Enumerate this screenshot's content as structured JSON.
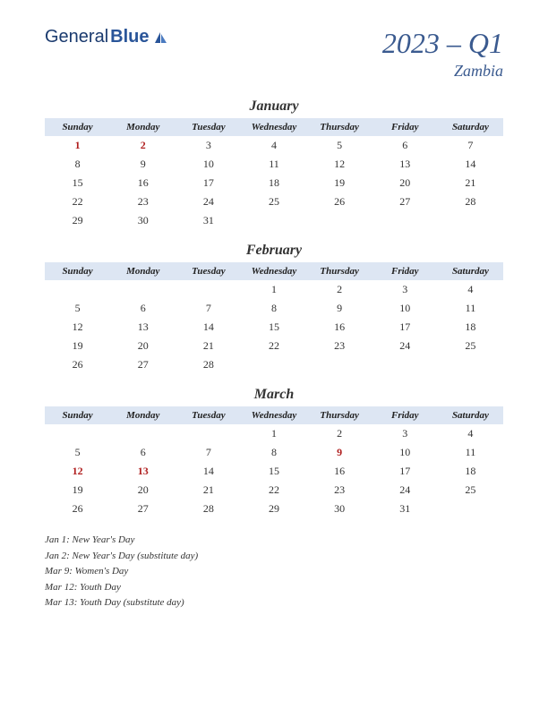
{
  "logo": {
    "text1": "General",
    "text2": "Blue"
  },
  "header": {
    "title": "2023 – Q1",
    "subtitle": "Zambia"
  },
  "dayNames": [
    "Sunday",
    "Monday",
    "Tuesday",
    "Wednesday",
    "Thursday",
    "Friday",
    "Saturday"
  ],
  "colors": {
    "headerBg": "#dde6f3",
    "holidayText": "#b02020",
    "titleColor": "#3a5a8f",
    "logoColor": "#2a5599",
    "bg": "#ffffff"
  },
  "months": [
    {
      "name": "January",
      "weeks": [
        [
          {
            "d": "1",
            "h": true
          },
          {
            "d": "2",
            "h": true
          },
          {
            "d": "3"
          },
          {
            "d": "4"
          },
          {
            "d": "5"
          },
          {
            "d": "6"
          },
          {
            "d": "7"
          }
        ],
        [
          {
            "d": "8"
          },
          {
            "d": "9"
          },
          {
            "d": "10"
          },
          {
            "d": "11"
          },
          {
            "d": "12"
          },
          {
            "d": "13"
          },
          {
            "d": "14"
          }
        ],
        [
          {
            "d": "15"
          },
          {
            "d": "16"
          },
          {
            "d": "17"
          },
          {
            "d": "18"
          },
          {
            "d": "19"
          },
          {
            "d": "20"
          },
          {
            "d": "21"
          }
        ],
        [
          {
            "d": "22"
          },
          {
            "d": "23"
          },
          {
            "d": "24"
          },
          {
            "d": "25"
          },
          {
            "d": "26"
          },
          {
            "d": "27"
          },
          {
            "d": "28"
          }
        ],
        [
          {
            "d": "29"
          },
          {
            "d": "30"
          },
          {
            "d": "31"
          },
          {
            "d": ""
          },
          {
            "d": ""
          },
          {
            "d": ""
          },
          {
            "d": ""
          }
        ]
      ]
    },
    {
      "name": "February",
      "weeks": [
        [
          {
            "d": ""
          },
          {
            "d": ""
          },
          {
            "d": ""
          },
          {
            "d": "1"
          },
          {
            "d": "2"
          },
          {
            "d": "3"
          },
          {
            "d": "4"
          }
        ],
        [
          {
            "d": "5"
          },
          {
            "d": "6"
          },
          {
            "d": "7"
          },
          {
            "d": "8"
          },
          {
            "d": "9"
          },
          {
            "d": "10"
          },
          {
            "d": "11"
          }
        ],
        [
          {
            "d": "12"
          },
          {
            "d": "13"
          },
          {
            "d": "14"
          },
          {
            "d": "15"
          },
          {
            "d": "16"
          },
          {
            "d": "17"
          },
          {
            "d": "18"
          }
        ],
        [
          {
            "d": "19"
          },
          {
            "d": "20"
          },
          {
            "d": "21"
          },
          {
            "d": "22"
          },
          {
            "d": "23"
          },
          {
            "d": "24"
          },
          {
            "d": "25"
          }
        ],
        [
          {
            "d": "26"
          },
          {
            "d": "27"
          },
          {
            "d": "28"
          },
          {
            "d": ""
          },
          {
            "d": ""
          },
          {
            "d": ""
          },
          {
            "d": ""
          }
        ]
      ]
    },
    {
      "name": "March",
      "weeks": [
        [
          {
            "d": ""
          },
          {
            "d": ""
          },
          {
            "d": ""
          },
          {
            "d": "1"
          },
          {
            "d": "2"
          },
          {
            "d": "3"
          },
          {
            "d": "4"
          }
        ],
        [
          {
            "d": "5"
          },
          {
            "d": "6"
          },
          {
            "d": "7"
          },
          {
            "d": "8"
          },
          {
            "d": "9",
            "h": true
          },
          {
            "d": "10"
          },
          {
            "d": "11"
          }
        ],
        [
          {
            "d": "12",
            "h": true
          },
          {
            "d": "13",
            "h": true
          },
          {
            "d": "14"
          },
          {
            "d": "15"
          },
          {
            "d": "16"
          },
          {
            "d": "17"
          },
          {
            "d": "18"
          }
        ],
        [
          {
            "d": "19"
          },
          {
            "d": "20"
          },
          {
            "d": "21"
          },
          {
            "d": "22"
          },
          {
            "d": "23"
          },
          {
            "d": "24"
          },
          {
            "d": "25"
          }
        ],
        [
          {
            "d": "26"
          },
          {
            "d": "27"
          },
          {
            "d": "28"
          },
          {
            "d": "29"
          },
          {
            "d": "30"
          },
          {
            "d": "31"
          },
          {
            "d": ""
          }
        ]
      ]
    }
  ],
  "holidayList": [
    "Jan 1: New Year's Day",
    "Jan 2: New Year's Day (substitute day)",
    "Mar 9: Women's Day",
    "Mar 12: Youth Day",
    "Mar 13: Youth Day (substitute day)"
  ]
}
